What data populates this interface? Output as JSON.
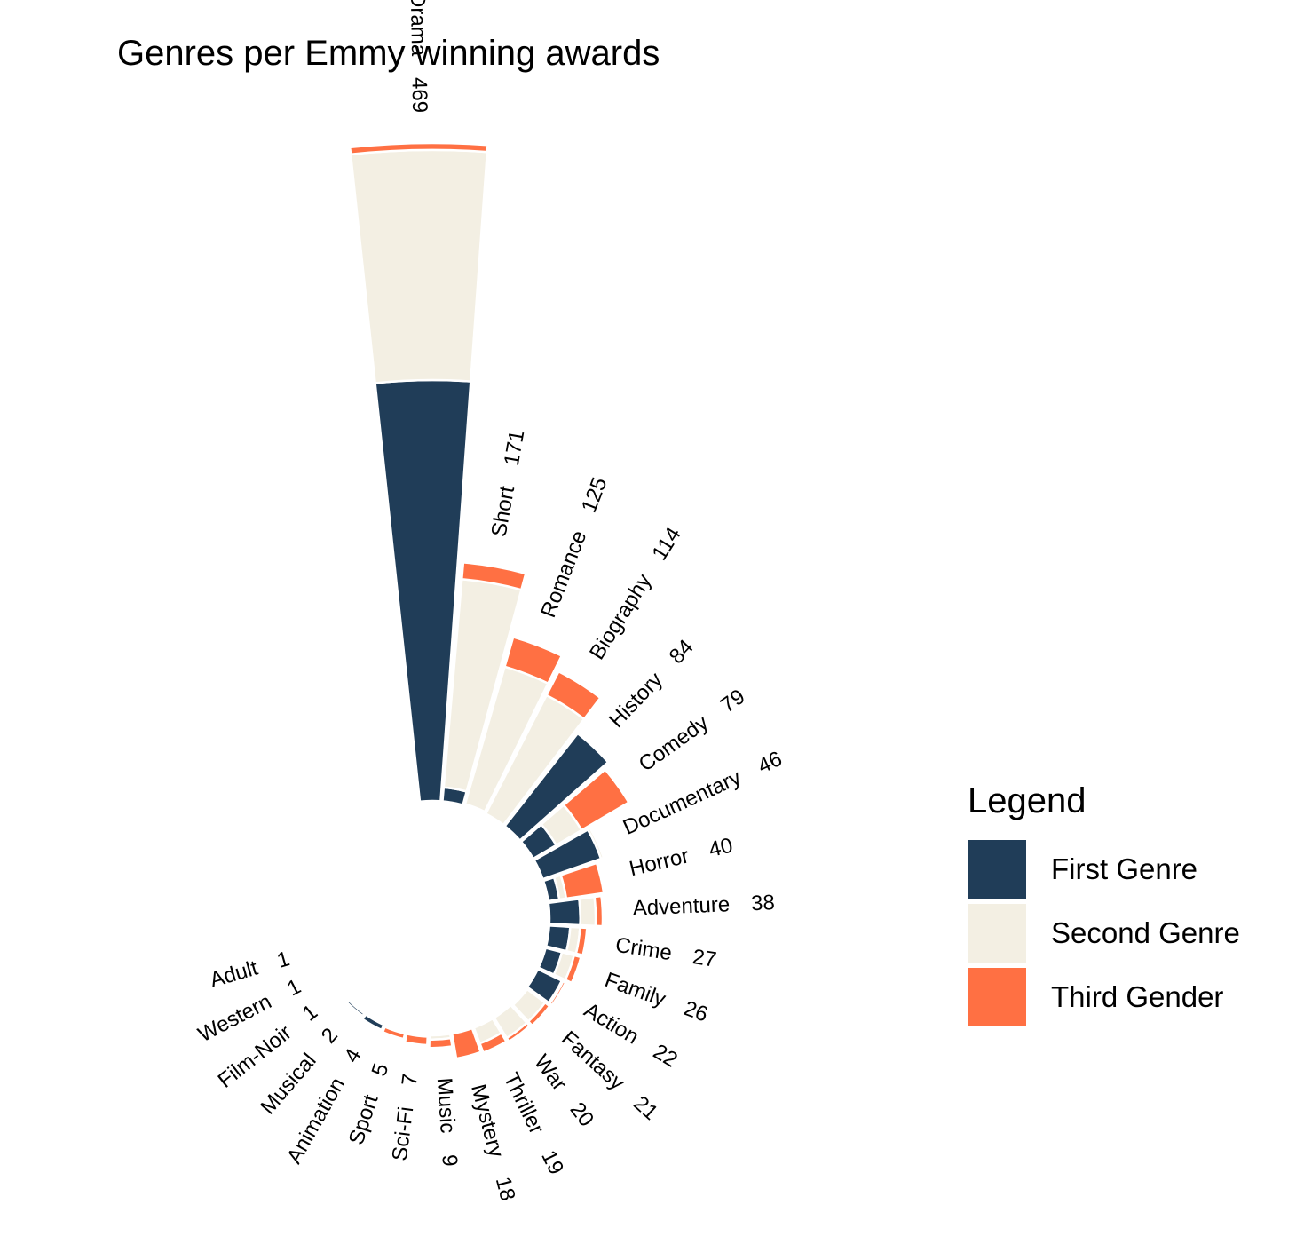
{
  "title": "Genres per Emmy winning awards",
  "colors": {
    "first": "#203D58",
    "second": "#F3EFE3",
    "third": "#FF7043"
  },
  "legend": {
    "title": "Legend",
    "items": [
      {
        "label": "First Genre",
        "color": "#203D58"
      },
      {
        "label": "Second Genre",
        "color": "#F3EFE3"
      },
      {
        "label": "Third Gender",
        "color": "#FF7043"
      }
    ]
  },
  "chart_data": {
    "type": "bar",
    "polar": true,
    "title": "Genres per Emmy winning awards",
    "categories": [
      "Drama",
      "Short",
      "Romance",
      "Biography",
      "History",
      "Comedy",
      "Documentary",
      "Horror",
      "Adventure",
      "Crime",
      "Family",
      "Action",
      "Fantasy",
      "War",
      "Thriller",
      "Mystery",
      "Music",
      "Sci-Fi",
      "Sport",
      "Animation",
      "Musical",
      "Film-Noir",
      "Western",
      "Adult"
    ],
    "totals": [
      469,
      171,
      125,
      114,
      84,
      79,
      46,
      40,
      38,
      27,
      26,
      22,
      21,
      20,
      19,
      18,
      9,
      7,
      5,
      4,
      2,
      1,
      1,
      1
    ],
    "series": [
      {
        "name": "First Genre",
        "values": [
          300,
          10,
          1,
          0,
          84,
          19,
          44,
          8,
          22,
          15,
          12,
          19,
          1,
          0,
          0,
          0,
          0,
          1,
          0,
          4,
          2,
          0,
          0,
          1
        ]
      },
      {
        "name": "Second Genre",
        "values": [
          164,
          149,
          102,
          95,
          0,
          21,
          2,
          5,
          11,
          7,
          9,
          1,
          16,
          17,
          12,
          0,
          3,
          0,
          1,
          0,
          0,
          0,
          1,
          0
        ]
      },
      {
        "name": "Third Gender",
        "values": [
          5,
          12,
          22,
          19,
          0,
          39,
          0,
          27,
          5,
          5,
          5,
          2,
          4,
          3,
          7,
          18,
          6,
          6,
          4,
          0,
          0,
          1,
          0,
          0
        ]
      }
    ]
  }
}
